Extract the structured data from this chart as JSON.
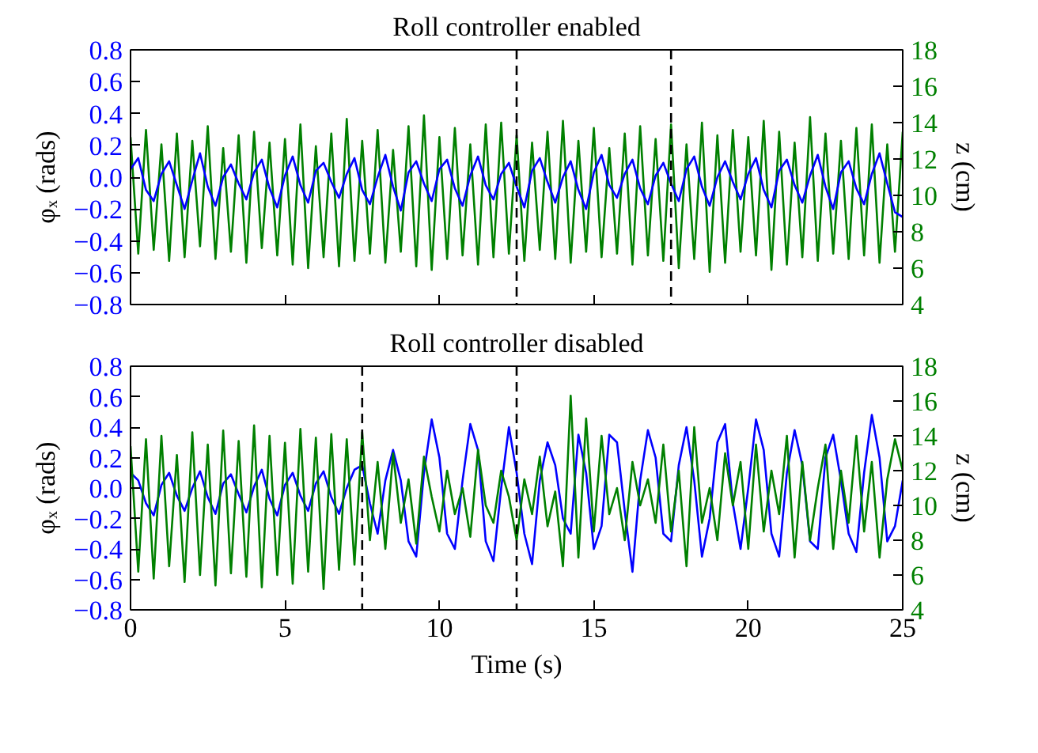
{
  "chart_data": [
    {
      "type": "line",
      "title": "Roll controller enabled",
      "ylabel": "φₓ (rads)",
      "y2label": "z (cm)",
      "tick_labels": "y",
      "grid": false,
      "xlim": [
        0,
        25
      ],
      "xticks": [
        0,
        5,
        10,
        15,
        20,
        25
      ],
      "ylim": [
        -0.8,
        0.8
      ],
      "yticks": [
        {
          "value": -0.8,
          "label": "−0.8"
        },
        {
          "value": -0.6,
          "label": "−0.6"
        },
        {
          "value": -0.4,
          "label": "−0.4"
        },
        {
          "value": -0.2,
          "label": "−0.2"
        },
        {
          "value": 0.0,
          "label": "0.0"
        },
        {
          "value": 0.2,
          "label": "0.2"
        },
        {
          "value": 0.4,
          "label": "0.4"
        },
        {
          "value": 0.6,
          "label": "0.6"
        },
        {
          "value": 0.8,
          "label": "0.8"
        }
      ],
      "y2lim": [
        4,
        18
      ],
      "y2ticks": [
        4,
        6,
        8,
        10,
        12,
        14,
        16,
        18
      ],
      "ref_lines": [
        {
          "axis": "x",
          "value": 12.5,
          "color": "#000000",
          "line_style": "dashed"
        },
        {
          "axis": "x",
          "value": 17.5,
          "color": "#000000",
          "line_style": "dashed"
        }
      ],
      "x": [
        0,
        0.25,
        0.5,
        0.75,
        1,
        1.25,
        1.5,
        1.75,
        2,
        2.25,
        2.5,
        2.75,
        3,
        3.25,
        3.5,
        3.75,
        4,
        4.25,
        4.5,
        4.75,
        5,
        5.25,
        5.5,
        5.75,
        6,
        6.25,
        6.5,
        6.75,
        7,
        7.25,
        7.5,
        7.75,
        8,
        8.25,
        8.5,
        8.75,
        9,
        9.25,
        9.5,
        9.75,
        10,
        10.25,
        10.5,
        10.75,
        11,
        11.25,
        11.5,
        11.75,
        12,
        12.25,
        12.5,
        12.75,
        13,
        13.25,
        13.5,
        13.75,
        14,
        14.25,
        14.5,
        14.75,
        15,
        15.25,
        15.5,
        15.75,
        16,
        16.25,
        16.5,
        16.75,
        17,
        17.25,
        17.5,
        17.75,
        18,
        18.25,
        18.5,
        18.75,
        19,
        19.25,
        19.5,
        19.75,
        20,
        20.25,
        20.5,
        20.75,
        21,
        21.25,
        21.5,
        21.75,
        22,
        22.25,
        22.5,
        22.75,
        23,
        23.25,
        23.5,
        23.75,
        24,
        24.25,
        24.5,
        24.75,
        25
      ],
      "series": [
        {
          "color": "#008000",
          "axis": "y2",
          "values": [
            13.2,
            6.8,
            13.6,
            7.0,
            12.8,
            6.4,
            13.4,
            6.6,
            13.0,
            7.2,
            13.8,
            6.5,
            12.6,
            6.9,
            13.3,
            6.3,
            13.5,
            7.1,
            12.9,
            6.7,
            13.1,
            6.2,
            13.9,
            6.0,
            12.7,
            6.6,
            13.4,
            6.1,
            14.2,
            6.4,
            13.0,
            6.8,
            13.6,
            6.3,
            12.5,
            6.9,
            13.8,
            6.1,
            14.4,
            5.9,
            13.2,
            6.5,
            13.7,
            6.7,
            12.8,
            6.2,
            13.9,
            6.6,
            14.0,
            6.8,
            13.3,
            6.4,
            12.9,
            7.0,
            13.5,
            6.5,
            14.1,
            6.3,
            13.0,
            6.9,
            13.7,
            6.6,
            12.6,
            6.8,
            13.4,
            6.2,
            13.8,
            6.7,
            13.1,
            6.4,
            13.9,
            6.0,
            12.8,
            6.5,
            14.0,
            5.8,
            13.3,
            6.3,
            13.6,
            6.9,
            13.2,
            6.7,
            14.1,
            5.9,
            13.5,
            6.2,
            12.9,
            6.6,
            14.3,
            6.4,
            13.4,
            6.8,
            13.0,
            6.5,
            13.7,
            6.7,
            13.9,
            6.3,
            12.8,
            6.9,
            13.5
          ]
        },
        {
          "color": "#0000ff",
          "axis": "y",
          "values": [
            0.05,
            0.12,
            -0.08,
            -0.15,
            0.02,
            0.1,
            -0.05,
            -0.2,
            -0.02,
            0.15,
            -0.06,
            -0.18,
            0.0,
            0.08,
            -0.04,
            -0.14,
            0.03,
            0.11,
            -0.07,
            -0.19,
            0.01,
            0.13,
            -0.05,
            -0.16,
            0.04,
            0.09,
            -0.03,
            -0.13,
            0.02,
            0.12,
            -0.08,
            -0.17,
            0.0,
            0.14,
            -0.06,
            -0.21,
            0.03,
            0.1,
            -0.04,
            -0.15,
            0.05,
            0.11,
            -0.07,
            -0.18,
            0.01,
            0.13,
            -0.05,
            -0.14,
            0.02,
            0.09,
            -0.06,
            -0.19,
            0.04,
            0.12,
            -0.03,
            -0.16,
            0.0,
            0.1,
            -0.08,
            -0.2,
            0.03,
            0.14,
            -0.05,
            -0.13,
            0.02,
            0.11,
            -0.07,
            -0.17,
            0.01,
            0.09,
            -0.04,
            -0.15,
            0.05,
            0.13,
            -0.06,
            -0.18,
            0.0,
            0.1,
            -0.03,
            -0.14,
            0.02,
            0.12,
            -0.08,
            -0.19,
            0.04,
            0.11,
            -0.05,
            -0.16,
            0.01,
            0.14,
            -0.06,
            -0.2,
            0.03,
            0.1,
            -0.07,
            -0.17,
            0.02,
            0.15,
            -0.04,
            -0.22,
            -0.25
          ]
        }
      ]
    },
    {
      "type": "line",
      "title": "Roll controller disabled",
      "xlabel": "Time (s)",
      "ylabel": "φₓ (rads)",
      "y2label": "z (cm)",
      "grid": false,
      "xlim": [
        0,
        25
      ],
      "xticks": [
        0,
        5,
        10,
        15,
        20,
        25
      ],
      "ylim": [
        -0.8,
        0.8
      ],
      "yticks": [
        {
          "value": -0.8,
          "label": "−0.8"
        },
        {
          "value": -0.6,
          "label": "−0.6"
        },
        {
          "value": -0.4,
          "label": "−0.4"
        },
        {
          "value": -0.2,
          "label": "−0.2"
        },
        {
          "value": 0.0,
          "label": "0.0"
        },
        {
          "value": 0.2,
          "label": "0.2"
        },
        {
          "value": 0.4,
          "label": "0.4"
        },
        {
          "value": 0.6,
          "label": "0.6"
        },
        {
          "value": 0.8,
          "label": "0.8"
        }
      ],
      "y2lim": [
        4,
        18
      ],
      "y2ticks": [
        4,
        6,
        8,
        10,
        12,
        14,
        16,
        18
      ],
      "ref_lines": [
        {
          "axis": "x",
          "value": 7.5,
          "color": "#000000",
          "line_style": "dashed"
        },
        {
          "axis": "x",
          "value": 12.5,
          "color": "#000000",
          "line_style": "dashed"
        }
      ],
      "x": [
        0,
        0.25,
        0.5,
        0.75,
        1,
        1.25,
        1.5,
        1.75,
        2,
        2.25,
        2.5,
        2.75,
        3,
        3.25,
        3.5,
        3.75,
        4,
        4.25,
        4.5,
        4.75,
        5,
        5.25,
        5.5,
        5.75,
        6,
        6.25,
        6.5,
        6.75,
        7,
        7.25,
        7.5,
        7.75,
        8,
        8.25,
        8.5,
        8.75,
        9,
        9.25,
        9.5,
        9.75,
        10,
        10.25,
        10.5,
        10.75,
        11,
        11.25,
        11.5,
        11.75,
        12,
        12.25,
        12.5,
        12.75,
        13,
        13.25,
        13.5,
        13.75,
        14,
        14.25,
        14.5,
        14.75,
        15,
        15.25,
        15.5,
        15.75,
        16,
        16.25,
        16.5,
        16.75,
        17,
        17.25,
        17.5,
        17.75,
        18,
        18.25,
        18.5,
        18.75,
        19,
        19.25,
        19.5,
        19.75,
        20,
        20.25,
        20.5,
        20.75,
        21,
        21.25,
        21.5,
        21.75,
        22,
        22.25,
        22.5,
        22.75,
        23,
        23.25,
        23.5,
        23.75,
        24,
        24.25,
        24.5,
        24.75,
        25
      ],
      "series": [
        {
          "color": "#0000ff",
          "axis": "y",
          "values": [
            0.1,
            0.05,
            -0.1,
            -0.18,
            0.02,
            0.1,
            -0.05,
            -0.15,
            0.0,
            0.11,
            -0.06,
            -0.17,
            0.03,
            0.09,
            -0.04,
            -0.16,
            0.01,
            0.12,
            -0.07,
            -0.18,
            0.02,
            0.1,
            -0.05,
            -0.15,
            0.03,
            0.11,
            -0.06,
            -0.17,
            0.0,
            0.12,
            0.15,
            -0.1,
            -0.3,
            0.05,
            0.25,
            0.05,
            -0.35,
            -0.45,
            0.1,
            0.45,
            0.2,
            -0.3,
            -0.4,
            0.05,
            0.42,
            0.25,
            -0.35,
            -0.48,
            0.0,
            0.4,
            0.1,
            -0.3,
            -0.5,
            0.05,
            0.3,
            0.15,
            -0.2,
            -0.3,
            0.35,
            0.1,
            -0.4,
            -0.25,
            0.35,
            0.3,
            -0.15,
            -0.55,
            0.05,
            0.38,
            0.2,
            -0.3,
            -0.35,
            0.15,
            0.4,
            0.05,
            -0.45,
            -0.2,
            0.3,
            0.42,
            -0.1,
            -0.4,
            0.0,
            0.45,
            0.25,
            -0.3,
            -0.45,
            0.1,
            0.38,
            0.15,
            -0.35,
            -0.4,
            0.2,
            0.35,
            0.05,
            -0.3,
            -0.42,
            0.1,
            0.48,
            0.2,
            -0.35,
            -0.25,
            0.05
          ]
        },
        {
          "color": "#008000",
          "axis": "y2",
          "values": [
            13.4,
            6.2,
            13.8,
            5.8,
            14.0,
            6.5,
            12.9,
            5.6,
            14.2,
            6.0,
            13.5,
            5.4,
            14.3,
            6.1,
            13.7,
            5.9,
            14.6,
            5.3,
            14.0,
            6.0,
            13.6,
            5.5,
            14.4,
            6.2,
            13.9,
            5.2,
            14.1,
            6.3,
            13.8,
            6.6,
            14.2,
            8.0,
            12.5,
            7.5,
            13.0,
            9.0,
            11.5,
            7.8,
            12.8,
            10.5,
            8.5,
            12.0,
            9.5,
            11.0,
            8.2,
            13.2,
            10.0,
            9.0,
            12.0,
            10.5,
            8.0,
            11.5,
            9.5,
            12.8,
            8.8,
            10.8,
            6.5,
            16.3,
            7.0,
            15.0,
            8.5,
            14.0,
            9.5,
            11.0,
            8.0,
            12.5,
            10.0,
            11.5,
            9.0,
            13.5,
            8.5,
            12.0,
            6.5,
            14.5,
            9.0,
            11.0,
            8.0,
            13.0,
            10.0,
            12.5,
            7.5,
            13.5,
            8.5,
            12.0,
            9.5,
            14.0,
            7.0,
            12.5,
            8.0,
            11.0,
            13.5,
            7.5,
            12.0,
            9.0,
            14.0,
            8.5,
            12.5,
            7.0,
            11.5,
            13.8,
            12.0
          ]
        }
      ]
    }
  ]
}
